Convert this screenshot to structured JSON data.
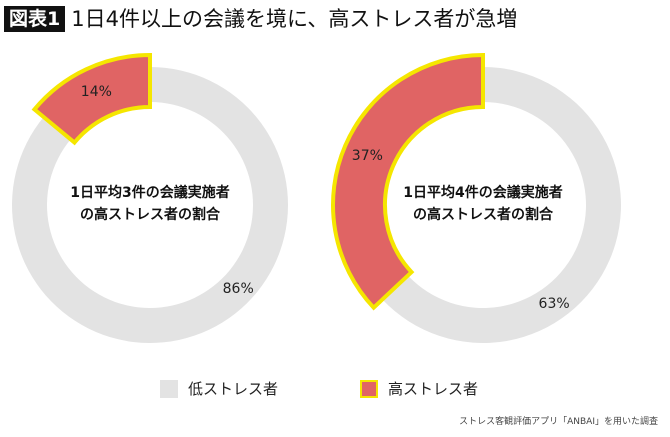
{
  "title": {
    "badge": "図表1",
    "text": "1日4件以上の会議を境に、高ストレス者が急増"
  },
  "chart_data": [
    {
      "type": "pie",
      "style": "donut",
      "center_label": "1日平均3件の会議実施者\nの高ストレス者の割合",
      "center_lines": [
        "1日平均3件の会議実施者",
        "の高ストレス者の割合"
      ],
      "slices": [
        {
          "name": "高ストレス者",
          "value": 14,
          "label": "14%"
        },
        {
          "name": "低ストレス者",
          "value": 86,
          "label": "86%"
        }
      ]
    },
    {
      "type": "pie",
      "style": "donut",
      "center_label": "1日平均4件の会議実施者\nの高ストレス者の割合",
      "center_lines": [
        "1日平均4件の会議実施者",
        "の高ストレス者の割合"
      ],
      "slices": [
        {
          "name": "高ストレス者",
          "value": 37,
          "label": "37%"
        },
        {
          "name": "低ストレス者",
          "value": 63,
          "label": "63%"
        }
      ]
    }
  ],
  "legend": [
    {
      "label": "低ストレス者",
      "color": "#e3e3e3"
    },
    {
      "label": "高ストレス者",
      "color": "#e06464",
      "border": "#f5e600"
    }
  ],
  "colors": {
    "low": "#e3e3e3",
    "high": "#e06464",
    "highlight": "#f5e600"
  },
  "source": "ストレス客観評価アプリ「ANBAI」を用いた調査"
}
